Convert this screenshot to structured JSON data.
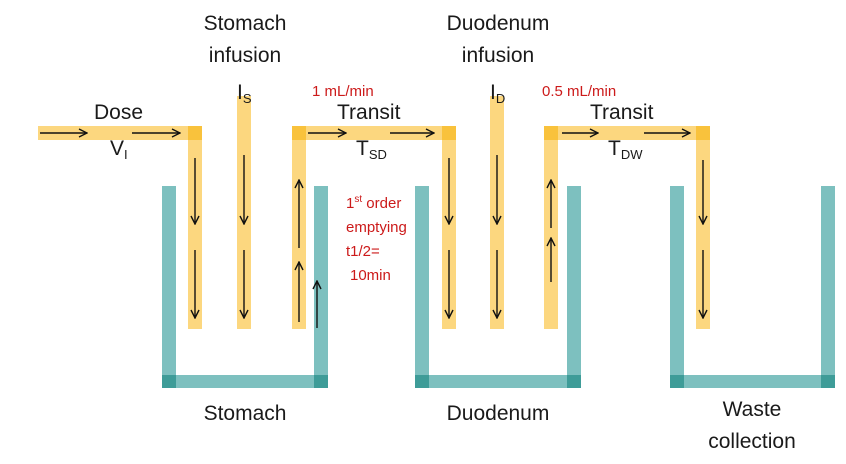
{
  "colors": {
    "tube": "#fcd77f",
    "tube_corner": "#f9c23c",
    "vessel": "#7dc0bf",
    "vessel_corner": "#3e9c98",
    "arrow": "#111111",
    "text": "#1a1a1a",
    "annotation": "#cc1a1a"
  },
  "vessels": {
    "stomach": "Stomach",
    "duodenum": "Duodenum",
    "waste_line1": "Waste",
    "waste_line2": "collection"
  },
  "dose": {
    "label": "Dose",
    "var": "V",
    "sub": "I"
  },
  "stomach_infusion": {
    "line1": "Stomach",
    "line2": "infusion",
    "var": "I",
    "sub": "S"
  },
  "duodenum_infusion": {
    "line1": "Duodenum",
    "line2": "infusion",
    "var": "I",
    "sub": "D"
  },
  "transit_sd": {
    "label": "Transit",
    "var": "T",
    "sub": "SD",
    "rate": "1 mL/min"
  },
  "transit_dw": {
    "label": "Transit",
    "var": "T",
    "sub": "DW",
    "rate": "0.5 mL/min"
  },
  "emptying": {
    "line1_num": "1",
    "line1_sup": "st",
    "line1_rest": " order",
    "line2": "emptying",
    "line3": "t1/2=",
    "line4": "10min"
  }
}
